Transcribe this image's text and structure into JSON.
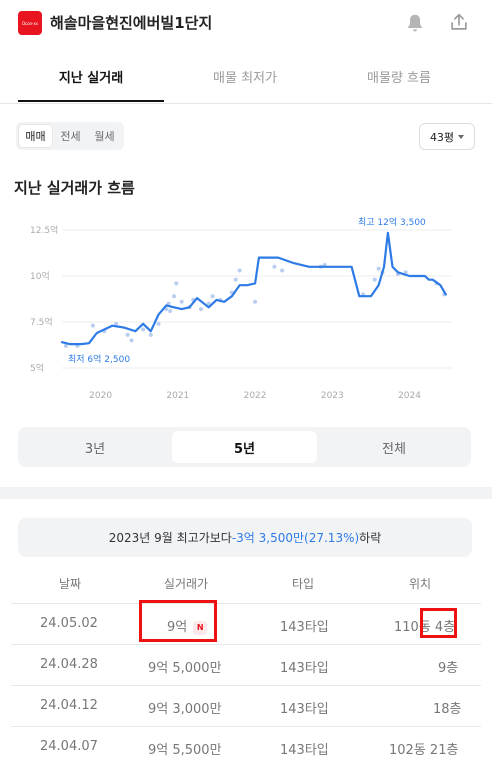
{
  "header": {
    "logo_text": "Dcon-xx",
    "title": "해솔마을현진에버빌1단지",
    "icons": [
      "bell-icon",
      "share-icon"
    ]
  },
  "tabs": [
    {
      "label": "지난 실거래",
      "active": true
    },
    {
      "label": "매물 최저가",
      "active": false
    },
    {
      "label": "매물량 흐름",
      "active": false
    }
  ],
  "deal_types": [
    {
      "label": "매매",
      "active": true
    },
    {
      "label": "전세",
      "active": false
    },
    {
      "label": "월세",
      "active": false
    }
  ],
  "size_select": {
    "value": "43평"
  },
  "section_title": "지난 실거래가 흐름",
  "chart_data": {
    "type": "line",
    "y_ticks": [
      "12.5억",
      "10억",
      "7.5억",
      "5억"
    ],
    "x_ticks": [
      "2020",
      "2021",
      "2022",
      "2023",
      "2024"
    ],
    "ylim": [
      5,
      12.5
    ],
    "xlim": [
      2019.5,
      2024.55
    ],
    "series": [
      {
        "x": [
          2019.5,
          2019.6,
          2019.75,
          2019.85,
          2019.95,
          2020.05,
          2020.15,
          2020.3,
          2020.45,
          2020.55,
          2020.65,
          2020.75,
          2020.85,
          2020.95,
          2021.05,
          2021.15,
          2021.25,
          2021.4,
          2021.5,
          2021.6,
          2021.7,
          2021.8,
          2021.9,
          2022.0,
          2022.05,
          2022.3,
          2022.5,
          2022.7,
          2022.85,
          2022.95,
          2023.0,
          2023.25,
          2023.35,
          2023.5,
          2023.6,
          2023.67,
          2023.72,
          2023.78,
          2023.85,
          2024.0,
          2024.1,
          2024.2,
          2024.25,
          2024.3,
          2024.4,
          2024.47
        ],
        "y": [
          6.4,
          6.3,
          6.3,
          6.35,
          6.9,
          7.1,
          7.3,
          7.2,
          7.0,
          7.4,
          7.0,
          7.9,
          8.4,
          8.3,
          8.2,
          8.3,
          8.8,
          8.3,
          8.7,
          8.6,
          8.9,
          9.5,
          9.5,
          9.6,
          11.0,
          11.0,
          10.7,
          10.5,
          10.5,
          10.5,
          10.5,
          10.5,
          8.9,
          8.9,
          9.5,
          10.5,
          12.35,
          10.5,
          10.2,
          10.0,
          10.0,
          10.0,
          9.8,
          9.8,
          9.5,
          9.0
        ]
      }
    ],
    "scatter": {
      "x": [
        2019.55,
        2019.7,
        2019.9,
        2020.05,
        2020.2,
        2020.35,
        2020.4,
        2020.55,
        2020.65,
        2020.75,
        2020.85,
        2020.88,
        2020.9,
        2020.95,
        2020.98,
        2021.05,
        2021.15,
        2021.2,
        2021.3,
        2021.4,
        2021.45,
        2021.55,
        2021.7,
        2021.75,
        2021.8,
        2022.0,
        2022.25,
        2022.35,
        2022.85,
        2022.9,
        2023.4,
        2023.55,
        2023.6,
        2023.65,
        2023.85,
        2023.95,
        2024.35,
        2024.45
      ],
      "y": [
        6.2,
        6.2,
        7.3,
        7.0,
        7.4,
        6.8,
        6.5,
        7.1,
        6.8,
        7.4,
        8.2,
        8.5,
        8.1,
        8.9,
        9.6,
        8.6,
        8.3,
        8.7,
        8.2,
        8.5,
        8.9,
        8.7,
        9.1,
        9.8,
        10.3,
        8.6,
        10.5,
        10.3,
        10.5,
        10.6,
        9.0,
        9.8,
        10.4,
        10.2,
        10.1,
        10.2,
        9.6,
        9.0
      ]
    },
    "annotations": {
      "max_label": "최고 12억 3,500",
      "min_label": "최저 6억 2,500"
    },
    "line_color": "#2e7be6",
    "point_color": "#b9cdf0"
  },
  "ranges": [
    {
      "label": "3년",
      "active": false
    },
    {
      "label": "5년",
      "active": true
    },
    {
      "label": "전체",
      "active": false
    }
  ],
  "summary": {
    "prefix": "2023년 9월 최고가보다 ",
    "change": "-3억 3,500만(27.13%)",
    "suffix": " 하락"
  },
  "table": {
    "headers": [
      "날짜",
      "실거래가",
      "타입",
      "위치"
    ],
    "rows": [
      {
        "date": "24.05.02",
        "price": "9억",
        "badge": "N",
        "type": "143타입",
        "location_dong": "110동",
        "location_floor": "4층"
      },
      {
        "date": "24.04.28",
        "price": "9억 5,000만",
        "type": "143타입",
        "location_dong": "",
        "location_floor": "9층"
      },
      {
        "date": "24.04.12",
        "price": "9억 3,000만",
        "type": "143타입",
        "location_dong": "",
        "location_floor": "18층"
      },
      {
        "date": "24.04.07",
        "price": "9억 5,500만",
        "type": "143타입",
        "location_dong": "102동",
        "location_floor": "21층"
      }
    ]
  }
}
